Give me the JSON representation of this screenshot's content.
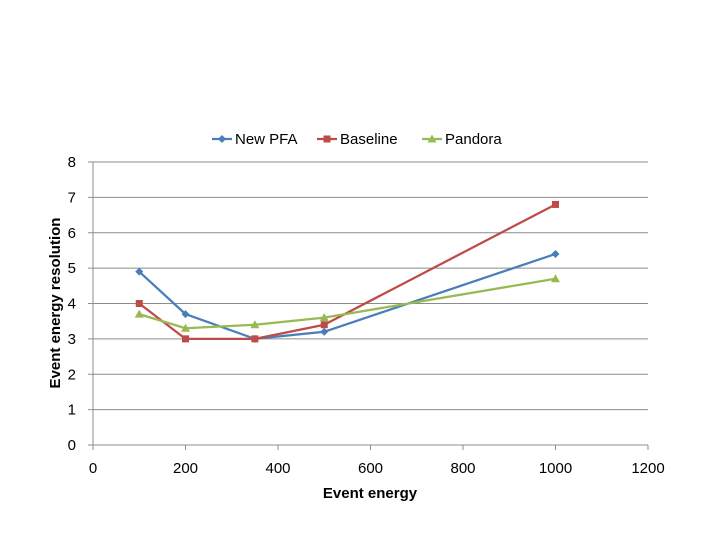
{
  "chart_data": {
    "type": "line",
    "title": "",
    "xlabel": "Event energy",
    "ylabel": "Event energy resolution",
    "xlim": [
      0,
      1200
    ],
    "ylim": [
      0,
      8
    ],
    "xticks": [
      0,
      200,
      400,
      600,
      800,
      1000,
      1200
    ],
    "yticks": [
      0,
      1,
      2,
      3,
      4,
      5,
      6,
      7,
      8
    ],
    "grid": true,
    "legend_position": "top",
    "series": [
      {
        "name": "New PFA",
        "color": "#4a7ebb",
        "marker": "diamond",
        "x": [
          100,
          200,
          350,
          500,
          1000
        ],
        "y": [
          4.9,
          3.7,
          3.0,
          3.2,
          5.4
        ]
      },
      {
        "name": "Baseline",
        "color": "#be4b48",
        "marker": "square",
        "x": [
          100,
          200,
          350,
          500,
          1000
        ],
        "y": [
          4.0,
          3.0,
          3.0,
          3.4,
          6.8
        ]
      },
      {
        "name": "Pandora",
        "color": "#98b954",
        "marker": "triangle",
        "x": [
          100,
          200,
          350,
          500,
          1000
        ],
        "y": [
          3.7,
          3.3,
          3.4,
          3.6,
          4.7
        ]
      }
    ]
  }
}
